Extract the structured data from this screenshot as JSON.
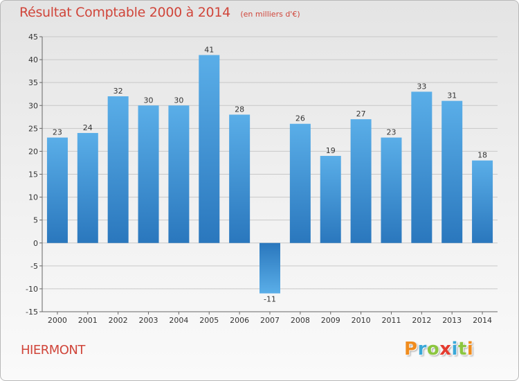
{
  "chart_data": {
    "type": "bar",
    "title": "Résultat Comptable 2000 à 2014",
    "subtitle": "(en milliers d'€)",
    "categories": [
      "2000",
      "2001",
      "2002",
      "2003",
      "2004",
      "2005",
      "2006",
      "2007",
      "2008",
      "2009",
      "2010",
      "2011",
      "2012",
      "2013",
      "2014"
    ],
    "values": [
      23,
      24,
      32,
      30,
      30,
      41,
      28,
      -11,
      26,
      19,
      27,
      23,
      33,
      31,
      18
    ],
    "ylim": [
      -15,
      45
    ],
    "yticks": [
      -15,
      -10,
      -5,
      0,
      5,
      10,
      15,
      20,
      25,
      30,
      35,
      40,
      45
    ],
    "xlabel": "",
    "ylabel": "",
    "grid": true,
    "bar_color": "#3a8dd4",
    "bar_color_dark": "#2672b8"
  },
  "footer": {
    "commune": "HIERMONT",
    "brand": "Proxiti",
    "brand_colors": [
      "#f08c1e",
      "#3aa8d8",
      "#8cc63f",
      "#e53b2f",
      "#3aa8d8",
      "#8cc63f",
      "#f08c1e"
    ]
  }
}
